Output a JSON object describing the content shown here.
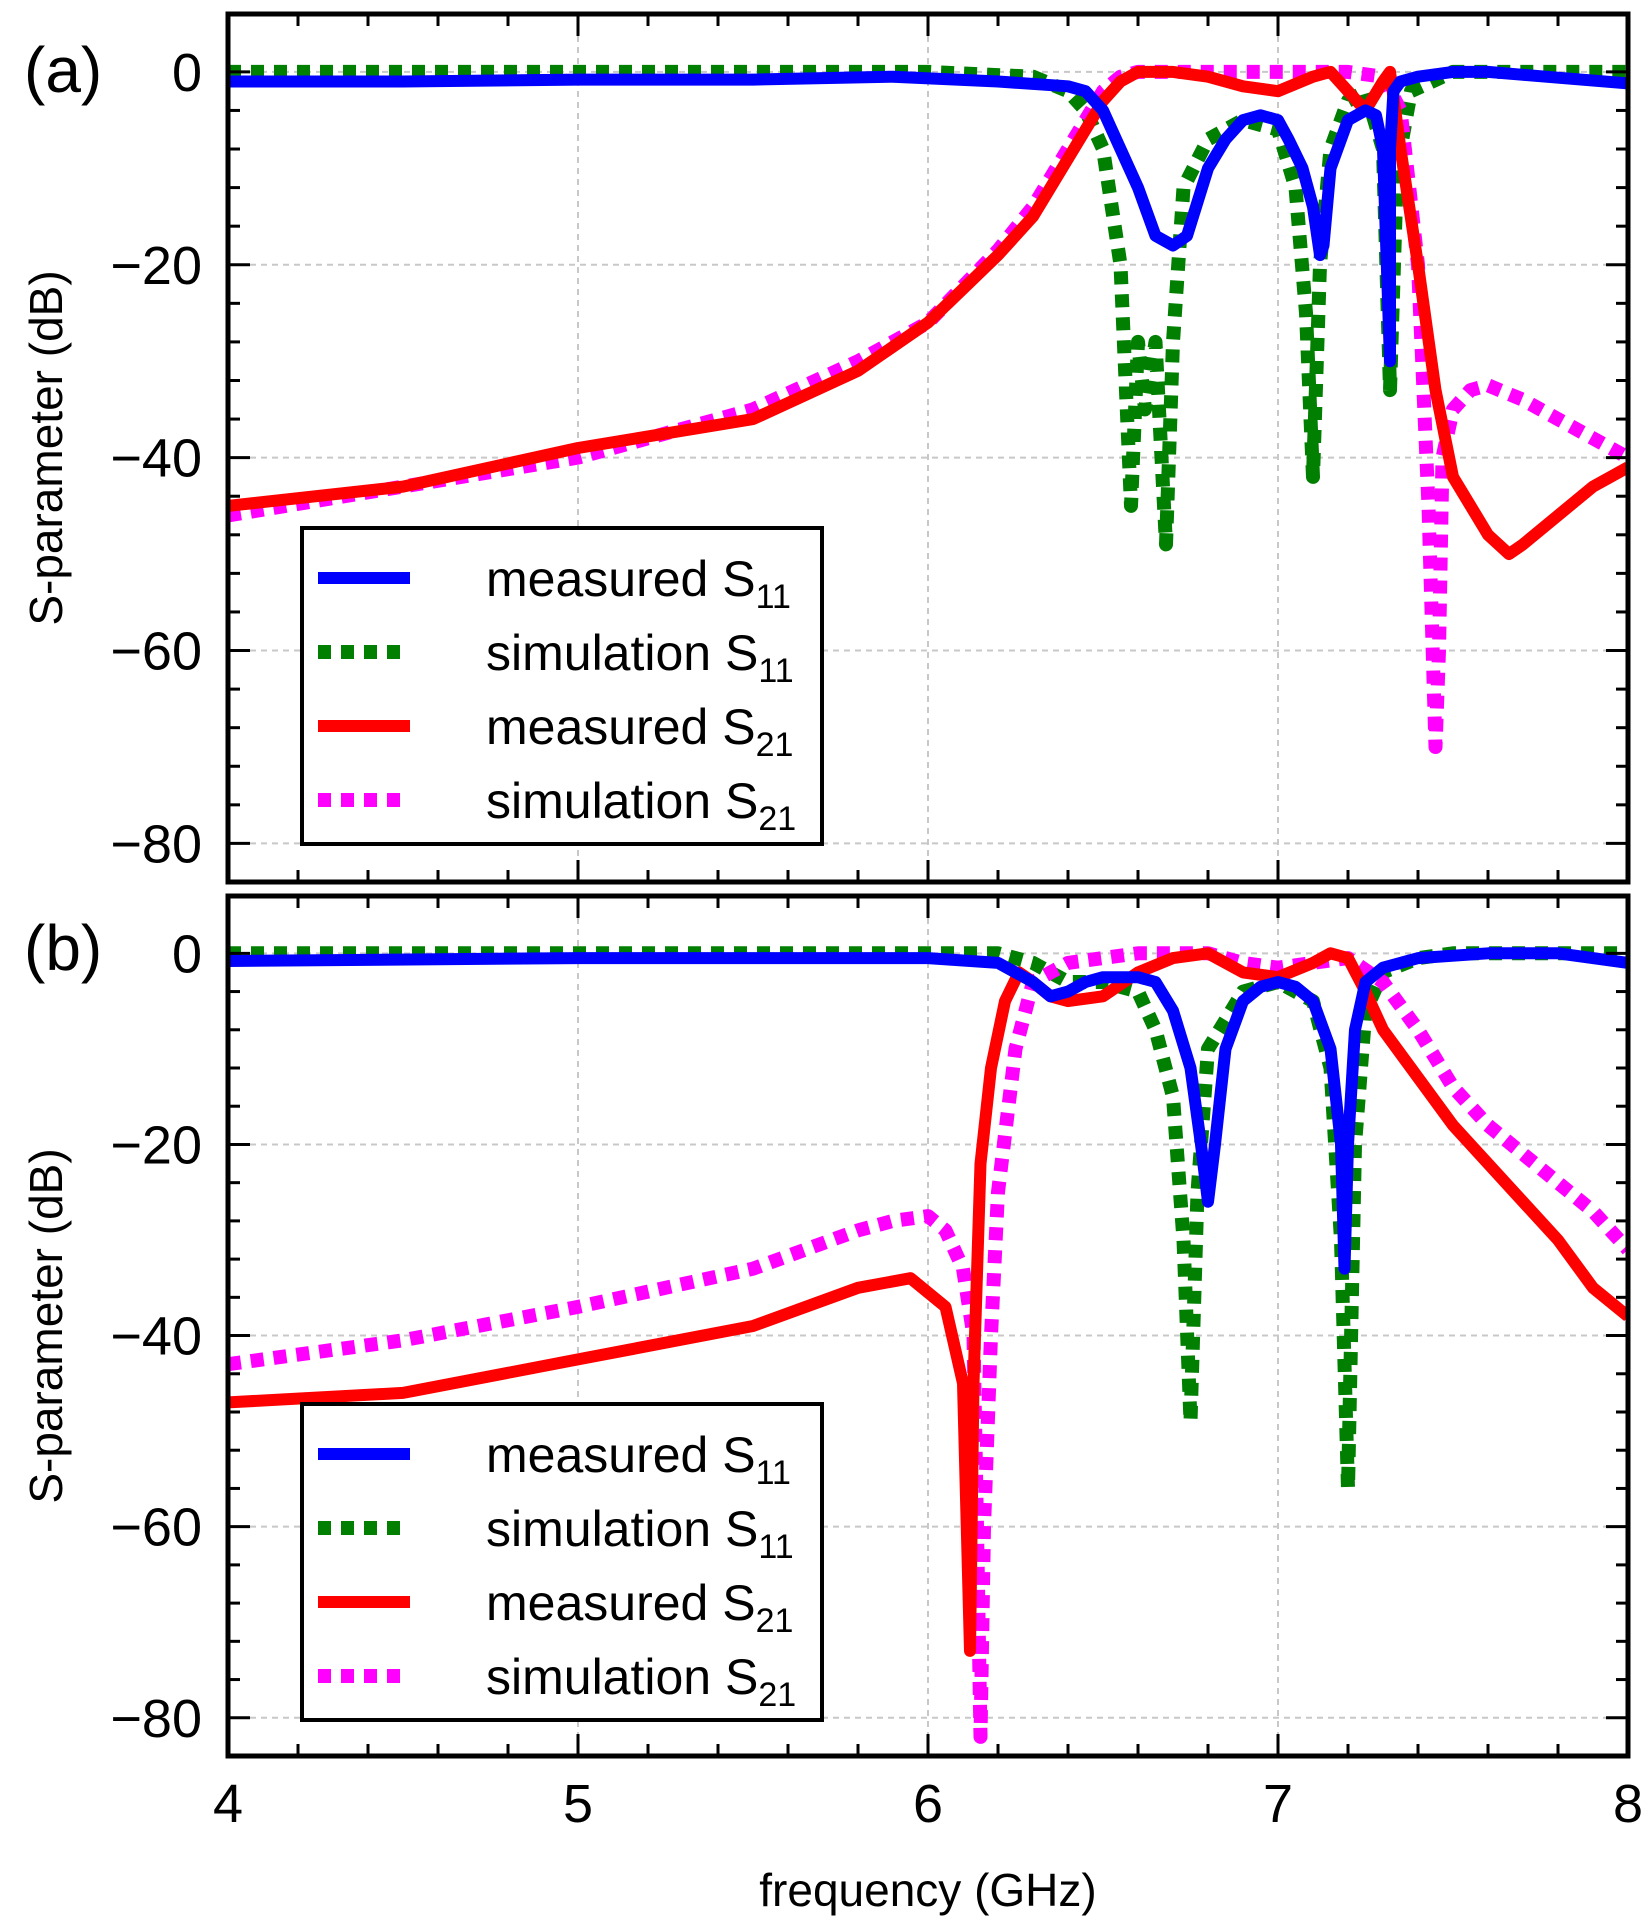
{
  "chart_data": [
    {
      "type": "line",
      "panel_label": "(a)",
      "xlabel": "",
      "ylabel": "S-parameter (dB)",
      "xlim": [
        4,
        8
      ],
      "ylim": [
        -84,
        6
      ],
      "x_ticks": [
        4,
        5,
        6,
        7,
        8
      ],
      "y_ticks": [
        0,
        -20,
        -40,
        -60,
        -80
      ],
      "x_tick_labels": [
        "",
        "",
        "",
        "",
        ""
      ],
      "y_tick_labels": [
        "0",
        "−20",
        "−40",
        "−60",
        "−80"
      ],
      "grid": true,
      "legend_position": "bottom-left",
      "series": [
        {
          "name": "measured S11",
          "label_main": "measured S",
          "label_sub": "11",
          "color": "#0000ff",
          "style": "solid",
          "x": [
            4.0,
            4.5,
            5.0,
            5.5,
            5.9,
            6.2,
            6.4,
            6.45,
            6.5,
            6.55,
            6.6,
            6.65,
            6.7,
            6.74,
            6.8,
            6.85,
            6.9,
            6.95,
            7.0,
            7.03,
            7.07,
            7.1,
            7.12,
            7.13,
            7.15,
            7.2,
            7.25,
            7.28,
            7.3,
            7.32,
            7.32,
            7.33,
            7.35,
            7.4,
            7.5,
            7.6,
            7.7,
            7.8,
            8.0
          ],
          "y": [
            -1,
            -1,
            -0.8,
            -0.8,
            -0.5,
            -1,
            -1.5,
            -2,
            -4,
            -8,
            -12,
            -17,
            -18,
            -17,
            -10,
            -7,
            -5,
            -4.5,
            -5,
            -7,
            -10,
            -14,
            -19,
            -18,
            -10,
            -5,
            -4,
            -4.5,
            -8,
            -30,
            -8,
            -2,
            -1,
            -0.5,
            0,
            0,
            -0.3,
            -0.6,
            -1.2
          ]
        },
        {
          "name": "simulation S11",
          "label_main": "simulation S",
          "label_sub": "11",
          "color": "#007f00",
          "style": "dotted",
          "x": [
            4.0,
            5.0,
            6.0,
            6.3,
            6.4,
            6.45,
            6.5,
            6.55,
            6.58,
            6.6,
            6.62,
            6.65,
            6.68,
            6.7,
            6.73,
            6.8,
            6.9,
            7.0,
            7.05,
            7.08,
            7.1,
            7.12,
            7.15,
            7.2,
            7.25,
            7.3,
            7.32,
            7.34,
            7.38,
            7.5,
            8.0
          ],
          "y": [
            0,
            0,
            0,
            -0.5,
            -2,
            -4,
            -8,
            -20,
            -45,
            -28,
            -35,
            -28,
            -49,
            -28,
            -12,
            -7,
            -5,
            -6,
            -12,
            -25,
            -42,
            -20,
            -8,
            -3,
            -2,
            -8,
            -33,
            -10,
            -2,
            0,
            0
          ]
        },
        {
          "name": "measured S21",
          "label_main": "measured S",
          "label_sub": "21",
          "color": "#ff0000",
          "style": "solid",
          "x": [
            4.0,
            4.5,
            5.0,
            5.5,
            5.8,
            6.0,
            6.1,
            6.2,
            6.3,
            6.4,
            6.5,
            6.55,
            6.6,
            6.7,
            6.8,
            6.9,
            7.0,
            7.1,
            7.15,
            7.2,
            7.25,
            7.3,
            7.32,
            7.35,
            7.4,
            7.45,
            7.5,
            7.6,
            7.66,
            7.7,
            7.8,
            7.9,
            8.0
          ],
          "y": [
            -45,
            -43,
            -39,
            -36,
            -31,
            -26,
            -22.5,
            -19,
            -15,
            -9,
            -3,
            -1,
            0,
            0,
            -0.5,
            -1.5,
            -2,
            -0.5,
            0,
            -2,
            -4,
            -1,
            0,
            -8,
            -20,
            -33,
            -42,
            -48,
            -50,
            -49,
            -46,
            -43,
            -41
          ]
        },
        {
          "name": "simulation S21",
          "label_main": "simulation S",
          "label_sub": "21",
          "color": "#ff00ff",
          "style": "dotted",
          "x": [
            4.0,
            4.5,
            5.0,
            5.5,
            5.8,
            6.0,
            6.2,
            6.3,
            6.4,
            6.5,
            6.55,
            6.6,
            6.7,
            6.8,
            7.0,
            7.2,
            7.3,
            7.35,
            7.4,
            7.43,
            7.45,
            7.46,
            7.47,
            7.5,
            7.55,
            7.6,
            7.7,
            7.8,
            8.0
          ],
          "y": [
            -46,
            -43,
            -40,
            -35,
            -30,
            -26,
            -18.5,
            -14,
            -8,
            -2,
            -0.5,
            0,
            0,
            0,
            0,
            0,
            -0.5,
            -4,
            -20,
            -45,
            -70,
            -60,
            -40,
            -35,
            -33,
            -32.5,
            -34,
            -36,
            -40
          ]
        }
      ]
    },
    {
      "type": "line",
      "panel_label": "(b)",
      "xlabel": "frequency (GHz)",
      "ylabel": "S-parameter (dB)",
      "xlim": [
        4,
        8
      ],
      "ylim": [
        -84,
        6
      ],
      "x_ticks": [
        4,
        5,
        6,
        7,
        8
      ],
      "y_ticks": [
        0,
        -20,
        -40,
        -60,
        -80
      ],
      "x_tick_labels": [
        "4",
        "5",
        "6",
        "7",
        "8"
      ],
      "y_tick_labels": [
        "0",
        "−20",
        "−40",
        "−60",
        "−80"
      ],
      "grid": true,
      "legend_position": "bottom-left",
      "series": [
        {
          "name": "measured S11",
          "label_main": "measured S",
          "label_sub": "11",
          "color": "#0000ff",
          "style": "solid",
          "x": [
            4.0,
            5.0,
            6.0,
            6.2,
            6.3,
            6.35,
            6.4,
            6.45,
            6.5,
            6.6,
            6.65,
            6.7,
            6.75,
            6.78,
            6.8,
            6.82,
            6.85,
            6.9,
            6.95,
            7.0,
            7.05,
            7.1,
            7.15,
            7.18,
            7.19,
            7.2,
            7.22,
            7.25,
            7.3,
            7.4,
            7.6,
            7.8,
            8.0
          ],
          "y": [
            -0.8,
            -0.5,
            -0.5,
            -1,
            -3,
            -4.5,
            -4,
            -3,
            -2.5,
            -2.5,
            -3,
            -6,
            -12,
            -20,
            -26,
            -20,
            -10,
            -5,
            -3.5,
            -3,
            -3.5,
            -5,
            -10,
            -20,
            -33,
            -20,
            -8,
            -3,
            -1.5,
            -0.5,
            0,
            0,
            -1
          ]
        },
        {
          "name": "simulation S11",
          "label_main": "simulation S",
          "label_sub": "11",
          "color": "#007f00",
          "style": "dotted",
          "x": [
            4.0,
            5.0,
            6.0,
            6.2,
            6.3,
            6.4,
            6.5,
            6.6,
            6.65,
            6.7,
            6.73,
            6.75,
            6.77,
            6.8,
            6.9,
            7.0,
            7.1,
            7.15,
            7.18,
            7.2,
            7.22,
            7.25,
            7.3,
            7.4,
            7.5,
            8.0
          ],
          "y": [
            0,
            0,
            0,
            0,
            -1,
            -3,
            -3,
            -4,
            -8,
            -15,
            -30,
            -49,
            -25,
            -10,
            -4,
            -3,
            -5,
            -12,
            -30,
            -56,
            -20,
            -6,
            -2,
            -0.5,
            0,
            0
          ]
        },
        {
          "name": "measured S21",
          "label_main": "measured S",
          "label_sub": "21",
          "color": "#ff0000",
          "style": "solid",
          "x": [
            4.0,
            4.5,
            5.0,
            5.5,
            5.8,
            5.95,
            6.05,
            6.1,
            6.12,
            6.13,
            6.15,
            6.18,
            6.22,
            6.26,
            6.3,
            6.35,
            6.4,
            6.5,
            6.6,
            6.7,
            6.8,
            6.9,
            7.0,
            7.1,
            7.15,
            7.2,
            7.25,
            7.3,
            7.4,
            7.5,
            7.6,
            7.7,
            7.8,
            7.9,
            8.0
          ],
          "y": [
            -47,
            -46,
            -42.5,
            -39,
            -35,
            -34,
            -37,
            -45,
            -73,
            -45,
            -22,
            -12,
            -5,
            -2,
            -3,
            -4.5,
            -5,
            -4.5,
            -2,
            -0.5,
            0,
            -2,
            -2.5,
            -1,
            0,
            -0.5,
            -4,
            -8,
            -13,
            -18,
            -22,
            -26,
            -30,
            -35,
            -38
          ]
        },
        {
          "name": "simulation S21",
          "label_main": "simulation S",
          "label_sub": "21",
          "color": "#ff00ff",
          "style": "dotted",
          "x": [
            4.0,
            4.5,
            5.0,
            5.5,
            5.8,
            5.9,
            6.0,
            6.05,
            6.1,
            6.13,
            6.14,
            6.15,
            6.16,
            6.18,
            6.2,
            6.25,
            6.3,
            6.4,
            6.5,
            6.6,
            6.7,
            6.8,
            6.9,
            7.0,
            7.1,
            7.2,
            7.3,
            7.4,
            7.5,
            7.6,
            7.7,
            7.8,
            7.9,
            8.0
          ],
          "y": [
            -43,
            -40.5,
            -37,
            -33,
            -29,
            -28,
            -27.5,
            -29,
            -33,
            -40,
            -60,
            -82,
            -60,
            -40,
            -25,
            -10,
            -3,
            -1,
            -0.5,
            0,
            0,
            0,
            -1,
            -1.5,
            -1,
            -0.5,
            -3,
            -8,
            -14,
            -18,
            -21,
            -24,
            -27,
            -31
          ]
        }
      ]
    }
  ]
}
